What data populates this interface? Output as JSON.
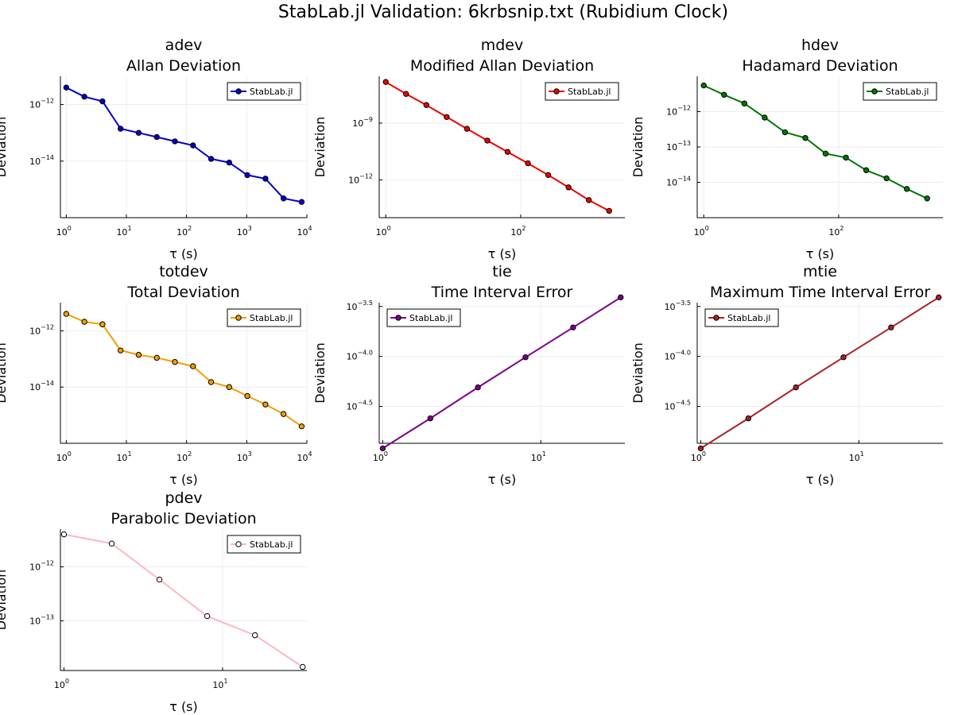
{
  "suptitle": "StabLab.jl Validation: 6krbsnip.txt (Rubidium Clock)",
  "chart_data": [
    {
      "type": "line",
      "title": "adev",
      "subtitle": "Allan Deviation",
      "xlabel": "τ (s)",
      "ylabel": "Deviation",
      "xscale": "log",
      "yscale": "log",
      "xlim": [
        0.8,
        10000
      ],
      "ylim": [
        1e-16,
        1e-11
      ],
      "xticks": [
        {
          "v": 1,
          "b": "10",
          "e": "0"
        },
        {
          "v": 10,
          "b": "10",
          "e": "1"
        },
        {
          "v": 100,
          "b": "10",
          "e": "2"
        },
        {
          "v": 1000,
          "b": "10",
          "e": "3"
        },
        {
          "v": 10000,
          "b": "10",
          "e": "4"
        }
      ],
      "yticks": [
        {
          "v": 1e-12,
          "b": "10",
          "e": "−12"
        },
        {
          "v": 1e-14,
          "b": "10",
          "e": "−14"
        }
      ],
      "legend_position": "top-right",
      "color": "#0000cc",
      "series": [
        {
          "name": "StabLab.jl",
          "marker_fill": "#0000cc",
          "x": [
            1,
            2,
            4,
            8,
            16,
            32,
            64,
            128,
            256,
            512,
            1024,
            2048,
            4096,
            8192
          ],
          "y": [
            4e-12,
            1.9e-12,
            1.3e-12,
            1.4e-13,
            1e-13,
            7.1e-14,
            5e-14,
            3.6e-14,
            1.2e-14,
            8.9e-15,
            3.2e-15,
            2.4e-15,
            4.8e-16,
            3.6e-16
          ]
        }
      ]
    },
    {
      "type": "line",
      "title": "mdev",
      "subtitle": "Modified Allan Deviation",
      "xlabel": "τ (s)",
      "ylabel": "Deviation",
      "xscale": "log",
      "yscale": "log",
      "xlim": [
        0.8,
        3500
      ],
      "ylim": [
        1e-14,
        3e-07
      ],
      "xticks": [
        {
          "v": 1,
          "b": "10",
          "e": "0"
        },
        {
          "v": 100,
          "b": "10",
          "e": "2"
        }
      ],
      "yticks": [
        {
          "v": 1e-09,
          "b": "10",
          "e": "−9"
        },
        {
          "v": 1e-12,
          "b": "10",
          "e": "−12"
        }
      ],
      "legend_position": "top-right",
      "color": "#ee0000",
      "series": [
        {
          "name": "StabLab.jl",
          "marker_fill": "#ee0000",
          "x": [
            1,
            2,
            4,
            8,
            16,
            32,
            64,
            128,
            256,
            512,
            1024,
            2048
          ],
          "y": [
            1.5e-07,
            3.5e-08,
            9e-09,
            2.1e-09,
            5e-10,
            1.2e-10,
            3e-11,
            7.5e-12,
            1.8e-12,
            4e-13,
            8.5e-14,
            2.3e-14
          ]
        }
      ]
    },
    {
      "type": "line",
      "title": "hdev",
      "subtitle": "Hadamard Deviation",
      "xlabel": "τ (s)",
      "ylabel": "Deviation",
      "xscale": "log",
      "yscale": "log",
      "xlim": [
        0.8,
        3500
      ],
      "ylim": [
        1e-15,
        1e-11
      ],
      "xticks": [
        {
          "v": 1,
          "b": "10",
          "e": "0"
        },
        {
          "v": 100,
          "b": "10",
          "e": "2"
        }
      ],
      "yticks": [
        {
          "v": 1e-12,
          "b": "10",
          "e": "−12"
        },
        {
          "v": 1e-13,
          "b": "10",
          "e": "−13"
        },
        {
          "v": 1e-14,
          "b": "10",
          "e": "−14"
        }
      ],
      "legend_position": "top-right",
      "color": "#007700",
      "series": [
        {
          "name": "StabLab.jl",
          "marker_fill": "#007700",
          "x": [
            1,
            2,
            4,
            8,
            16,
            32,
            64,
            128,
            256,
            512,
            1024,
            2048
          ],
          "y": [
            5.5e-12,
            3e-12,
            1.7e-12,
            6.8e-13,
            2.6e-13,
            1.8e-13,
            6.5e-14,
            5e-14,
            2.2e-14,
            1.3e-14,
            6.5e-15,
            3.5e-15
          ]
        }
      ]
    },
    {
      "type": "line",
      "title": "totdev",
      "subtitle": "Total Deviation",
      "xlabel": "τ (s)",
      "ylabel": "Deviation",
      "xscale": "log",
      "yscale": "log",
      "xlim": [
        0.8,
        10000
      ],
      "ylim": [
        1e-16,
        1e-11
      ],
      "xticks": [
        {
          "v": 1,
          "b": "10",
          "e": "0"
        },
        {
          "v": 10,
          "b": "10",
          "e": "1"
        },
        {
          "v": 100,
          "b": "10",
          "e": "2"
        },
        {
          "v": 1000,
          "b": "10",
          "e": "3"
        },
        {
          "v": 10000,
          "b": "10",
          "e": "4"
        }
      ],
      "yticks": [
        {
          "v": 1e-12,
          "b": "10",
          "e": "−12"
        },
        {
          "v": 1e-14,
          "b": "10",
          "e": "−14"
        }
      ],
      "legend_position": "top-right",
      "color": "#f0a000",
      "series": [
        {
          "name": "StabLab.jl",
          "marker_fill": "#f0a000",
          "x": [
            1,
            2,
            4,
            8,
            16,
            32,
            64,
            128,
            256,
            512,
            1024,
            2048,
            4096,
            8192
          ],
          "y": [
            4e-12,
            2.1e-12,
            1.7e-12,
            2e-13,
            1.4e-13,
            1.1e-13,
            7.8e-14,
            5.5e-14,
            1.5e-14,
            1e-14,
            4.8e-15,
            2.4e-15,
            1.1e-15,
            4e-16
          ]
        }
      ]
    },
    {
      "type": "line",
      "title": "tie",
      "subtitle": "Time Interval Error",
      "xlabel": "τ (s)",
      "ylabel": "Deviation",
      "xscale": "log",
      "yscale": "log",
      "xlim": [
        0.95,
        34
      ],
      "ylim": [
        1.35e-05,
        0.000345
      ],
      "xticks": [
        {
          "v": 1,
          "b": "10",
          "e": "0"
        },
        {
          "v": 10,
          "b": "10",
          "e": "1"
        }
      ],
      "yticks": [
        {
          "v": 0.000316,
          "b": "10",
          "e": "−3.5"
        },
        {
          "v": 0.0001,
          "b": "10",
          "e": "−4.0"
        },
        {
          "v": 3.16e-05,
          "b": "10",
          "e": "−4.5"
        }
      ],
      "legend_position": "top-left",
      "color": "#7a0088",
      "series": [
        {
          "name": "StabLab.jl",
          "marker_fill": "#7a0088",
          "x": [
            1,
            2,
            4,
            8,
            16,
            32
          ],
          "y": [
            1.2e-05,
            2.4e-05,
            4.9e-05,
            9.8e-05,
            0.000195,
            0.00039
          ]
        }
      ]
    },
    {
      "type": "line",
      "title": "mtie",
      "subtitle": "Maximum Time Interval Error",
      "xlabel": "τ (s)",
      "ylabel": "Deviation",
      "xscale": "log",
      "yscale": "log",
      "xlim": [
        0.95,
        34
      ],
      "ylim": [
        1.35e-05,
        0.000345
      ],
      "xticks": [
        {
          "v": 1,
          "b": "10",
          "e": "0"
        },
        {
          "v": 10,
          "b": "10",
          "e": "1"
        }
      ],
      "yticks": [
        {
          "v": 0.000316,
          "b": "10",
          "e": "−3.5"
        },
        {
          "v": 0.0001,
          "b": "10",
          "e": "−4.0"
        },
        {
          "v": 3.16e-05,
          "b": "10",
          "e": "−4.5"
        }
      ],
      "legend_position": "top-left",
      "color": "#aa2222",
      "series": [
        {
          "name": "StabLab.jl",
          "marker_fill": "#aa2222",
          "x": [
            1,
            2,
            4,
            8,
            16,
            32
          ],
          "y": [
            1.2e-05,
            2.4e-05,
            4.9e-05,
            9.8e-05,
            0.000195,
            0.00039
          ]
        }
      ]
    },
    {
      "type": "line",
      "title": "pdev",
      "subtitle": "Parabolic Deviation",
      "xlabel": "τ (s)",
      "ylabel": "Deviation",
      "xscale": "log",
      "yscale": "log",
      "xlim": [
        0.95,
        34
      ],
      "ylim": [
        1.2e-14,
        5e-12
      ],
      "xticks": [
        {
          "v": 1,
          "b": "10",
          "e": "0"
        },
        {
          "v": 10,
          "b": "10",
          "e": "1"
        }
      ],
      "yticks": [
        {
          "v": 1e-12,
          "b": "10",
          "e": "−12"
        },
        {
          "v": 1e-13,
          "b": "10",
          "e": "−13"
        }
      ],
      "legend_position": "top-right",
      "color": "#ffb6c1",
      "series": [
        {
          "name": "StabLab.jl",
          "marker_fill": "#ffffff",
          "x": [
            1,
            2,
            4,
            8,
            16,
            32
          ],
          "y": [
            4e-12,
            2.7e-12,
            5.8e-13,
            1.22e-13,
            5.4e-14,
            1.4e-14
          ]
        }
      ]
    }
  ]
}
